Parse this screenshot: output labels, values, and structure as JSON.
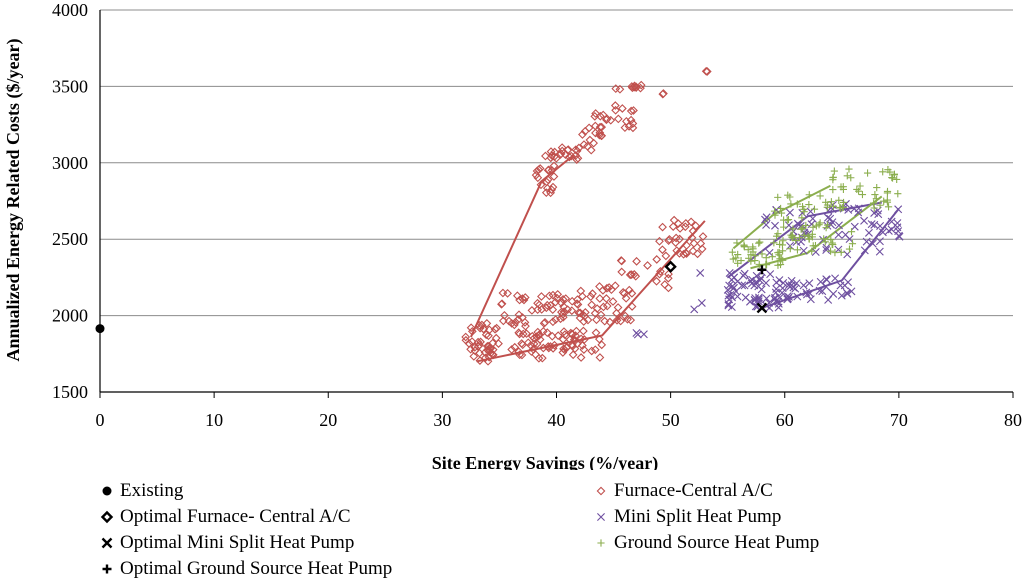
{
  "chart_data": {
    "type": "scatter",
    "title": "",
    "xlabel": "Site Energy Savings (%/year)",
    "ylabel": "Annualized Energy Related Costs ($/year)",
    "xlim": [
      0,
      80
    ],
    "ylim": [
      1500,
      4000
    ],
    "xticks": [
      0,
      10,
      20,
      30,
      40,
      50,
      60,
      70,
      80
    ],
    "yticks": [
      1500,
      2000,
      2500,
      3000,
      3500,
      4000
    ],
    "grid": "horizontal",
    "legend_position": "bottom",
    "series": [
      {
        "name": "Existing",
        "marker": "filled-circle",
        "color": "#000000",
        "points": [
          [
            0,
            1915
          ]
        ]
      },
      {
        "name": "Furnace-Central A/C",
        "marker": "open-diamond",
        "color": "#C0504D",
        "clusters": [
          {
            "x": [
              32,
              35
            ],
            "y": [
              1700,
              1950
            ],
            "n": 45
          },
          {
            "x": [
              36,
              44
            ],
            "y": [
              1720,
              1900
            ],
            "n": 70
          },
          {
            "x": [
              35,
              42
            ],
            "y": [
              1930,
              2150
            ],
            "n": 55
          },
          {
            "x": [
              42,
              47
            ],
            "y": [
              1950,
              2200
            ],
            "n": 40
          },
          {
            "x": [
              45,
              50
            ],
            "y": [
              2150,
              2400
            ],
            "n": 20
          },
          {
            "x": [
              49,
              53
            ],
            "y": [
              2400,
              2630
            ],
            "n": 30
          },
          {
            "x": [
              38,
              40
            ],
            "y": [
              2800,
              2980
            ],
            "n": 18
          },
          {
            "x": [
              39,
              42
            ],
            "y": [
              3020,
              3100
            ],
            "n": 22
          },
          {
            "x": [
              42,
              44
            ],
            "y": [
              3050,
              3250
            ],
            "n": 15
          },
          {
            "x": [
              43,
              47
            ],
            "y": [
              3220,
              3380
            ],
            "n": 20
          },
          {
            "x": [
              45,
              47.5
            ],
            "y": [
              3480,
              3520
            ],
            "n": 10
          },
          {
            "x": [
              48,
              49.5
            ],
            "y": [
              3420,
              3460
            ],
            "n": 2
          },
          {
            "x": [
              52.8,
              53.4
            ],
            "y": [
              3590,
              3600
            ],
            "n": 2
          }
        ],
        "frontier": [
          [
            32.5,
            1860
          ],
          [
            38.7,
            2880
          ],
          [
            41.5,
            3050
          ]
        ],
        "frontier2": [
          [
            33,
            1700
          ],
          [
            44,
            1870
          ],
          [
            53,
            2620
          ]
        ]
      },
      {
        "name": "Optimal Furnace- Central A/C",
        "marker": "open-diamond-bold",
        "color": "#000000",
        "points": [
          [
            50,
            2320
          ]
        ]
      },
      {
        "name": "Mini Split Heat Pump",
        "marker": "x",
        "color": "#6E4FA0",
        "clusters": [
          {
            "x": [
              55,
              60
            ],
            "y": [
              2050,
              2300
            ],
            "n": 60
          },
          {
            "x": [
              59,
              66
            ],
            "y": [
              2100,
              2250
            ],
            "n": 40
          },
          {
            "x": [
              58,
              64
            ],
            "y": [
              2400,
              2700
            ],
            "n": 35
          },
          {
            "x": [
              64,
              70.5
            ],
            "y": [
              2400,
              2750
            ],
            "n": 40
          },
          {
            "x": [
              47,
              48.5
            ],
            "y": [
              1850,
              1920
            ],
            "n": 3
          },
          {
            "x": [
              52,
              53
            ],
            "y": [
              2000,
              2290
            ],
            "n": 3
          }
        ],
        "frontier": [
          [
            55,
            2250
          ],
          [
            62,
            2650
          ],
          [
            68.5,
            2740
          ]
        ],
        "frontier2": [
          [
            58,
            2050
          ],
          [
            65,
            2230
          ],
          [
            70,
            2700
          ]
        ]
      },
      {
        "name": "Optimal Mini Split Heat Pump",
        "marker": "x-bold",
        "color": "#000000",
        "points": [
          [
            58,
            2050
          ]
        ]
      },
      {
        "name": "Ground Source Heat Pump",
        "marker": "plus",
        "color": "#8BAE4E",
        "clusters": [
          {
            "x": [
              55,
              60
            ],
            "y": [
              2320,
              2500
            ],
            "n": 40
          },
          {
            "x": [
              59,
              64
            ],
            "y": [
              2500,
              2800
            ],
            "n": 40
          },
          {
            "x": [
              64,
              70
            ],
            "y": [
              2700,
              2960
            ],
            "n": 45
          },
          {
            "x": [
              60,
              66
            ],
            "y": [
              2400,
              2600
            ],
            "n": 25
          }
        ],
        "frontier": [
          [
            55.5,
            2440
          ],
          [
            59,
            2660
          ],
          [
            64,
            2850
          ]
        ],
        "frontier2": [
          [
            57,
            2310
          ],
          [
            62,
            2410
          ],
          [
            68.5,
            2780
          ]
        ]
      },
      {
        "name": "Optimal Ground Source Heat Pump",
        "marker": "plus-bold",
        "color": "#000000",
        "points": [
          [
            58,
            2300
          ]
        ]
      }
    ]
  },
  "legend": {
    "left": [
      {
        "label": "Existing",
        "marker": "filled-circle",
        "color": "#000000"
      },
      {
        "label": "Optimal Furnace- Central A/C",
        "marker": "open-diamond-bold",
        "color": "#000000"
      },
      {
        "label": "Optimal Mini Split Heat Pump",
        "marker": "x-bold",
        "color": "#000000"
      },
      {
        "label": "Optimal Ground Source Heat Pump",
        "marker": "plus-bold",
        "color": "#000000"
      }
    ],
    "right": [
      {
        "label": "Furnace-Central A/C",
        "marker": "open-diamond",
        "color": "#C0504D"
      },
      {
        "label": "Mini Split Heat Pump",
        "marker": "x",
        "color": "#6E4FA0"
      },
      {
        "label": "Ground Source Heat Pump",
        "marker": "plus",
        "color": "#8BAE4E"
      }
    ]
  }
}
